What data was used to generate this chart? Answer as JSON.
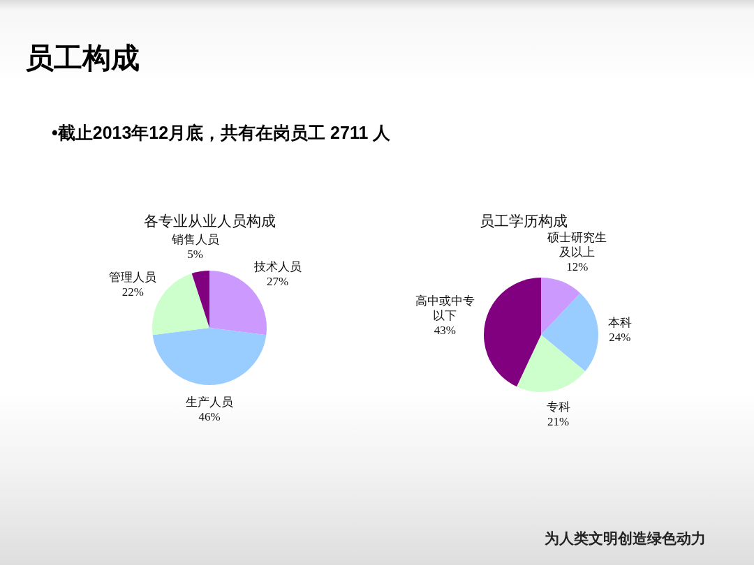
{
  "chart_data": [
    {
      "type": "other",
      "title": "员工构成",
      "subtitle": "•截止2013年12月底，共有在岗员工 2711 人",
      "annotations": [
        "为人类文明创造绿色动力"
      ]
    },
    {
      "type": "pie",
      "title": "各专业从业人员构成",
      "categories": [
        "技术人员",
        "生产人员",
        "管理人员",
        "销售人员"
      ],
      "values": [
        27,
        46,
        22,
        5
      ],
      "colors": [
        "#cc99ff",
        "#99ccff",
        "#ccffcc",
        "#800080"
      ],
      "value_labels": [
        "27%",
        "46%",
        "22%",
        "5%"
      ]
    },
    {
      "type": "pie",
      "title": "员工学历构成",
      "categories": [
        "硕士研究生及以上",
        "本科",
        "专科",
        "高中或中专以下"
      ],
      "values": [
        12,
        24,
        21,
        43
      ],
      "colors": [
        "#cc99ff",
        "#99ccff",
        "#ccffcc",
        "#800080"
      ],
      "value_labels": [
        "12%",
        "24%",
        "21%",
        "43%"
      ]
    }
  ]
}
